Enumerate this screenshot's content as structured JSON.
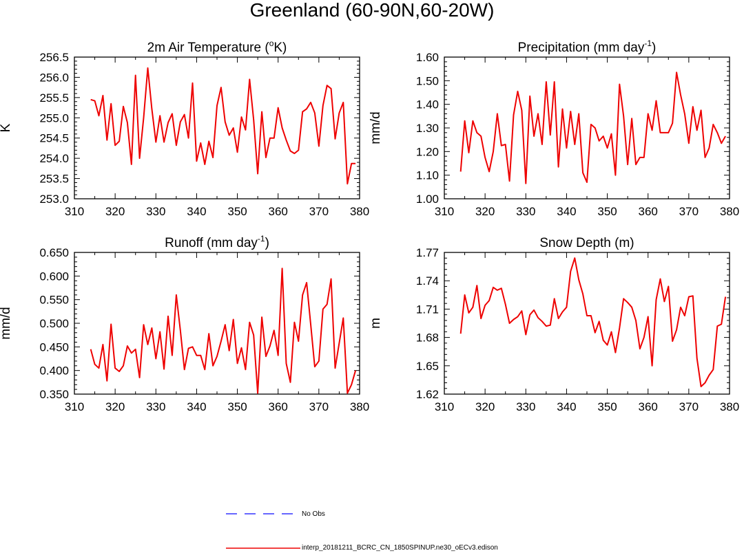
{
  "title": "Greenland (60-90N,60-20W)",
  "colors": {
    "series": "#ee0000",
    "no_obs": "#3333ff",
    "axis": "#000000"
  },
  "legend": [
    {
      "label": "No Obs",
      "style": "dashed",
      "color": "#3333ff"
    },
    {
      "label": "interp_20181211_BCRC_CN_1850SPINUP.ne30_oECv3.edison",
      "style": "solid",
      "color": "#ee0000"
    }
  ],
  "chart_data": [
    {
      "type": "line",
      "title": "2m Air Temperature (",
      "title_sup": "o",
      "title_end": "K)",
      "ylabel": "K",
      "xlim": [
        310,
        380
      ],
      "ylim": [
        253.0,
        256.5
      ],
      "xticks": [
        310,
        320,
        330,
        340,
        350,
        360,
        370,
        380
      ],
      "yticks": [
        "253.0",
        "253.5",
        "254.0",
        "254.5",
        "255.0",
        "255.5",
        "256.0",
        "256.5"
      ],
      "x_start": 314,
      "values": [
        255.45,
        255.42,
        255.05,
        255.55,
        254.45,
        255.35,
        254.32,
        254.42,
        255.28,
        254.88,
        253.85,
        256.05,
        254.0,
        255.0,
        256.23,
        255.22,
        254.4,
        255.05,
        254.4,
        254.88,
        255.1,
        254.32,
        254.9,
        255.08,
        254.5,
        255.86,
        253.93,
        254.38,
        253.85,
        254.42,
        254.02,
        255.3,
        255.75,
        254.9,
        254.57,
        254.75,
        254.15,
        255.02,
        254.7,
        255.95,
        254.95,
        253.62,
        255.15,
        254.02,
        254.5,
        254.5,
        255.25,
        254.75,
        254.45,
        254.18,
        254.12,
        254.2,
        255.15,
        255.22,
        255.38,
        255.12,
        254.3,
        255.3,
        255.8,
        255.72,
        254.48,
        255.12,
        255.38,
        253.37,
        253.87,
        253.87
      ],
      "series": [
        {
          "name": "interp_20181211_BCRC_CN_1850SPINUP.ne30_oECv3.edison"
        }
      ]
    },
    {
      "type": "line",
      "title": "Precipitation (mm day",
      "title_sup": "-1",
      "title_end": ")",
      "ylabel": "mm/d",
      "xlim": [
        310,
        380
      ],
      "ylim": [
        1.0,
        1.6
      ],
      "xticks": [
        310,
        320,
        330,
        340,
        350,
        360,
        370,
        380
      ],
      "yticks": [
        "1.00",
        "1.10",
        "1.20",
        "1.30",
        "1.40",
        "1.50",
        "1.60"
      ],
      "x_start": 314,
      "values": [
        1.115,
        1.33,
        1.195,
        1.33,
        1.28,
        1.265,
        1.175,
        1.115,
        1.2,
        1.36,
        1.225,
        1.23,
        1.075,
        1.355,
        1.455,
        1.375,
        1.065,
        1.435,
        1.265,
        1.36,
        1.23,
        1.495,
        1.27,
        1.495,
        1.135,
        1.38,
        1.215,
        1.37,
        1.23,
        1.36,
        1.11,
        1.07,
        1.315,
        1.3,
        1.245,
        1.265,
        1.215,
        1.275,
        1.1,
        1.485,
        1.35,
        1.145,
        1.34,
        1.145,
        1.175,
        1.175,
        1.36,
        1.29,
        1.415,
        1.28,
        1.28,
        1.28,
        1.32,
        1.535,
        1.44,
        1.36,
        1.235,
        1.39,
        1.29,
        1.375,
        1.175,
        1.215,
        1.315,
        1.28,
        1.235,
        1.265
      ],
      "series": [
        {
          "name": "interp_20181211_BCRC_CN_1850SPINUP.ne30_oECv3.edison"
        }
      ]
    },
    {
      "type": "line",
      "title": "Runoff (mm day",
      "title_sup": "-1",
      "title_end": ")",
      "ylabel": "mm/d",
      "xlim": [
        310,
        380
      ],
      "ylim": [
        0.35,
        0.65
      ],
      "xticks": [
        310,
        320,
        330,
        340,
        350,
        360,
        370,
        380
      ],
      "yticks": [
        "0.350",
        "0.400",
        "0.450",
        "0.500",
        "0.550",
        "0.600",
        "0.650"
      ],
      "x_start": 314,
      "values": [
        0.445,
        0.413,
        0.405,
        0.455,
        0.378,
        0.498,
        0.405,
        0.398,
        0.41,
        0.452,
        0.437,
        0.445,
        0.385,
        0.497,
        0.455,
        0.49,
        0.425,
        0.482,
        0.403,
        0.515,
        0.432,
        0.56,
        0.485,
        0.402,
        0.447,
        0.45,
        0.432,
        0.432,
        0.402,
        0.478,
        0.41,
        0.43,
        0.462,
        0.497,
        0.442,
        0.508,
        0.415,
        0.448,
        0.402,
        0.502,
        0.475,
        0.352,
        0.513,
        0.43,
        0.452,
        0.485,
        0.432,
        0.616,
        0.415,
        0.375,
        0.502,
        0.462,
        0.56,
        0.586,
        0.498,
        0.408,
        0.42,
        0.53,
        0.54,
        0.594,
        0.405,
        0.458,
        0.511,
        0.352,
        0.37,
        0.4
      ],
      "series": [
        {
          "name": "interp_20181211_BCRC_CN_1850SPINUP.ne30_oECv3.edison"
        }
      ]
    },
    {
      "type": "line",
      "title": "Snow Depth (m)",
      "title_sup": "",
      "title_end": "",
      "ylabel": "m",
      "xlim": [
        310,
        380
      ],
      "ylim": [
        1.62,
        1.77
      ],
      "xticks": [
        310,
        320,
        330,
        340,
        350,
        360,
        370,
        380
      ],
      "yticks": [
        "1.62",
        "1.65",
        "1.68",
        "1.71",
        "1.74",
        "1.77"
      ],
      "x_start": 314,
      "values": [
        1.684,
        1.725,
        1.706,
        1.712,
        1.735,
        1.7,
        1.714,
        1.719,
        1.733,
        1.73,
        1.732,
        1.715,
        1.695,
        1.699,
        1.702,
        1.708,
        1.683,
        1.704,
        1.709,
        1.701,
        1.697,
        1.692,
        1.693,
        1.721,
        1.7,
        1.707,
        1.712,
        1.75,
        1.764,
        1.741,
        1.726,
        1.703,
        1.703,
        1.685,
        1.697,
        1.677,
        1.672,
        1.686,
        1.664,
        1.69,
        1.721,
        1.717,
        1.712,
        1.698,
        1.668,
        1.68,
        1.702,
        1.65,
        1.72,
        1.742,
        1.718,
        1.734,
        1.676,
        1.688,
        1.712,
        1.703,
        1.723,
        1.724,
        1.658,
        1.628,
        1.632,
        1.64,
        1.646,
        1.692,
        1.694,
        1.723
      ],
      "series": [
        {
          "name": "interp_20181211_BCRC_CN_1850SPINUP.ne30_oECv3.edison"
        }
      ]
    }
  ]
}
